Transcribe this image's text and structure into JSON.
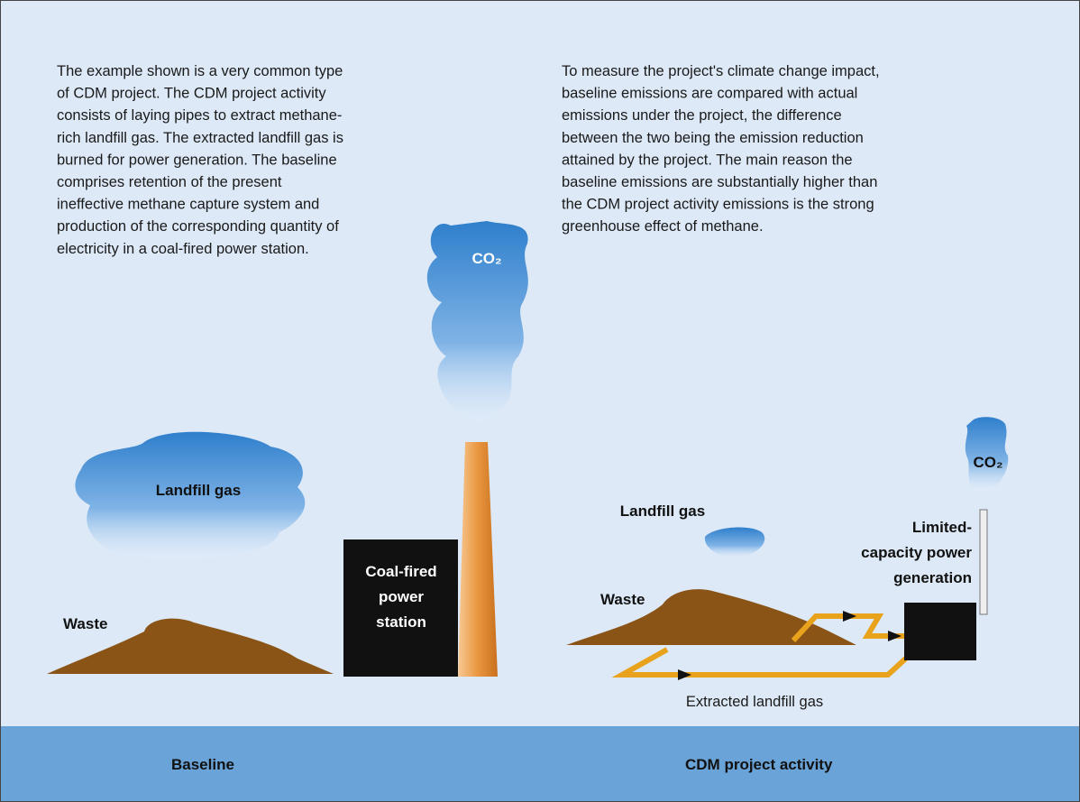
{
  "left_text": {
    "lines": [
      "The example shown is a very common type",
      "of CDM project. The CDM project activity",
      "consists of laying pipes to extract methane-",
      "rich landfill gas. The extracted landfill gas is",
      "burned for power generation. The baseline",
      "comprises retention of the present",
      "ineffective methane capture system and",
      "production of the corresponding quantity of",
      "electricity in a coal-fired power station."
    ]
  },
  "right_text": {
    "lines": [
      "To measure the project's climate change impact,",
      "baseline emissions are compared with actual",
      "emissions under the project, the difference",
      "between the two being the emission reduction",
      "attained by the project. The main reason the",
      "baseline emissions are substantially higher than",
      "the CDM project activity emissions is the strong",
      "greenhouse effect of methane."
    ]
  },
  "baseline": {
    "co2_label": "CO₂",
    "cloud_label": "Landfill gas",
    "waste_label": "Waste",
    "station_label": [
      "Coal-fired",
      "power",
      "station"
    ]
  },
  "project": {
    "co2_label": "CO₂",
    "cloud_label": "Landfill gas",
    "waste_label": "Waste",
    "generation_label": [
      "Limited-",
      "capacity power",
      "generation"
    ],
    "pipe_label": "Extracted landfill gas"
  },
  "footer": {
    "left": "Baseline",
    "right": "CDM project activity"
  }
}
